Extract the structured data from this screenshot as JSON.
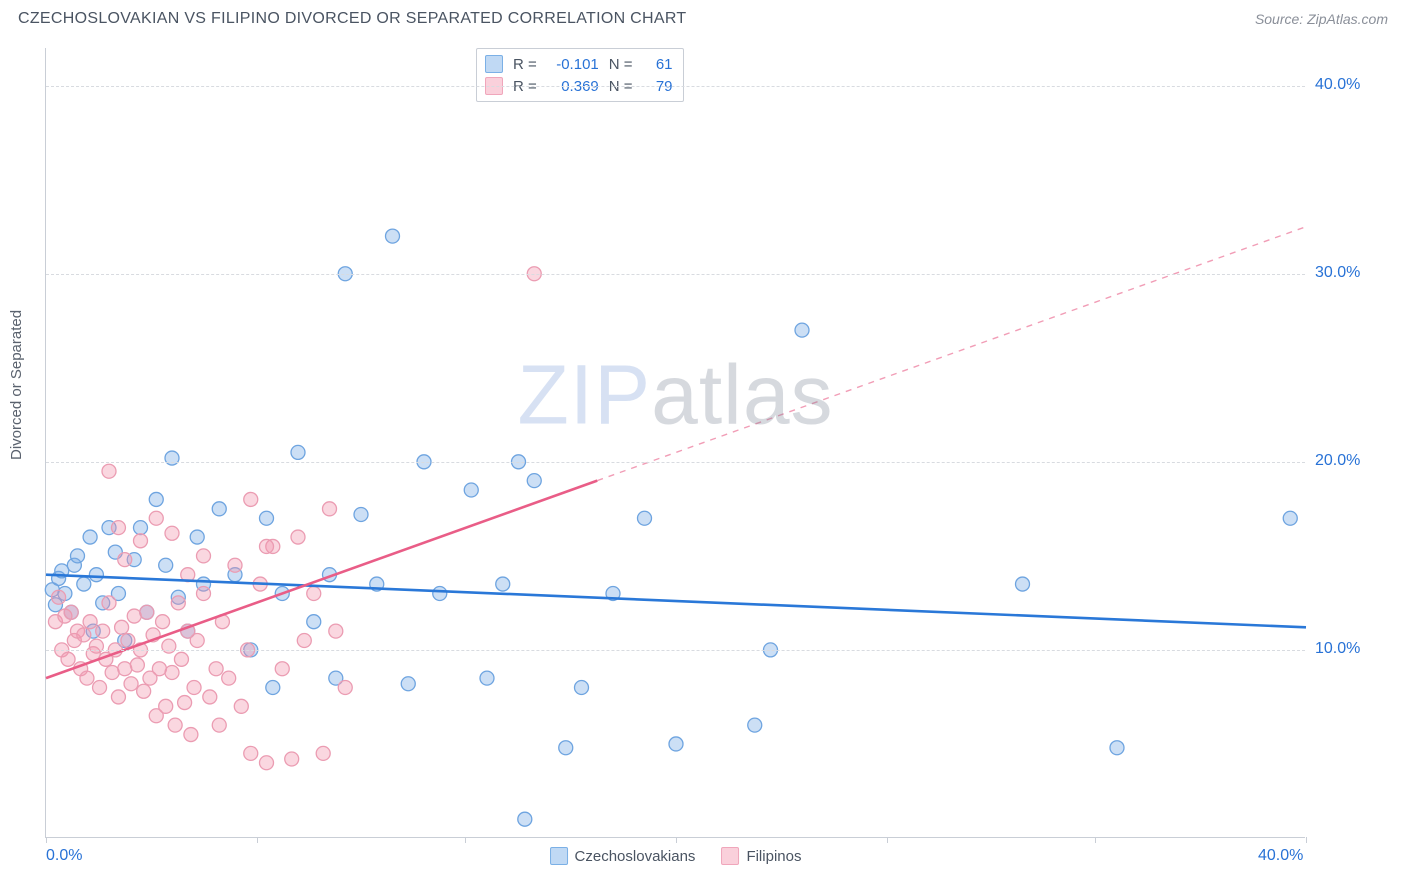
{
  "title": "CZECHOSLOVAKIAN VS FILIPINO DIVORCED OR SEPARATED CORRELATION CHART",
  "source_label": "Source: ",
  "source_value": "ZipAtlas.com",
  "ylabel": "Divorced or Separated",
  "watermark_zip": "ZIP",
  "watermark_atlas": "atlas",
  "chart": {
    "type": "scatter",
    "xlim": [
      0,
      40
    ],
    "ylim": [
      0,
      42
    ],
    "xtick_positions": [
      0,
      6.7,
      13.3,
      20,
      26.7,
      33.3,
      40
    ],
    "xtick_labels_shown": {
      "0": "0.0%",
      "40": "40.0%"
    },
    "ytick_values": [
      10,
      20,
      30,
      40
    ],
    "ytick_labels": [
      "10.0%",
      "20.0%",
      "30.0%",
      "40.0%"
    ],
    "grid_color": "#d8dbe0",
    "axis_color": "#c9ced6",
    "axis_label_color": "#2872d6",
    "background_color": "#ffffff",
    "marker_radius": 7,
    "marker_stroke_width": 1.3,
    "trend_line_width": 2.6,
    "series": [
      {
        "name": "Czechoslovakians",
        "fill_color": "rgba(120,170,230,0.38)",
        "stroke_color": "#6ea4e0",
        "swatch_border": "#7bb0e6",
        "swatch_fill": "rgba(140,185,235,0.55)",
        "trend_color": "#2a78d8",
        "trend": {
          "x1": 0,
          "y1": 14.0,
          "x2": 40,
          "y2": 11.2
        },
        "R": "-0.101",
        "N": "61",
        "points": [
          [
            0.2,
            13.2
          ],
          [
            0.3,
            12.4
          ],
          [
            0.4,
            13.8
          ],
          [
            0.5,
            14.2
          ],
          [
            0.6,
            13.0
          ],
          [
            0.8,
            12.0
          ],
          [
            0.9,
            14.5
          ],
          [
            1.0,
            15.0
          ],
          [
            1.2,
            13.5
          ],
          [
            1.4,
            16.0
          ],
          [
            1.6,
            14.0
          ],
          [
            1.5,
            11.0
          ],
          [
            1.8,
            12.5
          ],
          [
            2.0,
            16.5
          ],
          [
            2.2,
            15.2
          ],
          [
            2.3,
            13.0
          ],
          [
            2.5,
            10.5
          ],
          [
            2.8,
            14.8
          ],
          [
            3.0,
            16.5
          ],
          [
            3.2,
            12.0
          ],
          [
            3.5,
            18.0
          ],
          [
            3.8,
            14.5
          ],
          [
            4.0,
            20.2
          ],
          [
            4.2,
            12.8
          ],
          [
            4.5,
            11.0
          ],
          [
            4.8,
            16.0
          ],
          [
            5.0,
            13.5
          ],
          [
            5.5,
            17.5
          ],
          [
            6.0,
            14.0
          ],
          [
            6.5,
            10.0
          ],
          [
            7.0,
            17.0
          ],
          [
            7.2,
            8.0
          ],
          [
            7.5,
            13.0
          ],
          [
            8.0,
            20.5
          ],
          [
            8.5,
            11.5
          ],
          [
            9.0,
            14.0
          ],
          [
            9.2,
            8.5
          ],
          [
            9.5,
            30.0
          ],
          [
            10.0,
            17.2
          ],
          [
            10.5,
            13.5
          ],
          [
            11.0,
            32.0
          ],
          [
            11.5,
            8.2
          ],
          [
            12.0,
            20.0
          ],
          [
            12.5,
            13.0
          ],
          [
            13.5,
            18.5
          ],
          [
            14.0,
            8.5
          ],
          [
            14.5,
            13.5
          ],
          [
            15.0,
            20.0
          ],
          [
            15.2,
            1.0
          ],
          [
            15.5,
            19.0
          ],
          [
            16.5,
            4.8
          ],
          [
            17.0,
            8.0
          ],
          [
            18.0,
            13.0
          ],
          [
            19.0,
            17.0
          ],
          [
            20.0,
            5.0
          ],
          [
            22.5,
            6.0
          ],
          [
            24.0,
            27.0
          ],
          [
            31.0,
            13.5
          ],
          [
            34.0,
            4.8
          ],
          [
            39.5,
            17.0
          ],
          [
            23.0,
            10.0
          ]
        ]
      },
      {
        "name": "Filipinos",
        "fill_color": "rgba(242,150,173,0.38)",
        "stroke_color": "#eb9cb2",
        "swatch_border": "#f0a6bb",
        "swatch_fill": "rgba(245,170,190,0.55)",
        "trend_color": "#e95d87",
        "trend": {
          "x1": 0,
          "y1": 8.5,
          "x2": 17.5,
          "y2": 19.0
        },
        "trend_extrapolate": {
          "x1": 17.5,
          "y1": 19.0,
          "x2": 40,
          "y2": 32.5
        },
        "R": "0.369",
        "N": "79",
        "points": [
          [
            0.3,
            11.5
          ],
          [
            0.4,
            12.8
          ],
          [
            0.5,
            10.0
          ],
          [
            0.6,
            11.8
          ],
          [
            0.7,
            9.5
          ],
          [
            0.8,
            12.0
          ],
          [
            0.9,
            10.5
          ],
          [
            1.0,
            11.0
          ],
          [
            1.1,
            9.0
          ],
          [
            1.2,
            10.8
          ],
          [
            1.3,
            8.5
          ],
          [
            1.4,
            11.5
          ],
          [
            1.5,
            9.8
          ],
          [
            1.6,
            10.2
          ],
          [
            1.7,
            8.0
          ],
          [
            1.8,
            11.0
          ],
          [
            1.9,
            9.5
          ],
          [
            2.0,
            12.5
          ],
          [
            2.1,
            8.8
          ],
          [
            2.2,
            10.0
          ],
          [
            2.3,
            7.5
          ],
          [
            2.4,
            11.2
          ],
          [
            2.5,
            9.0
          ],
          [
            2.6,
            10.5
          ],
          [
            2.7,
            8.2
          ],
          [
            2.8,
            11.8
          ],
          [
            2.9,
            9.2
          ],
          [
            3.0,
            10.0
          ],
          [
            3.1,
            7.8
          ],
          [
            3.2,
            12.0
          ],
          [
            3.3,
            8.5
          ],
          [
            3.4,
            10.8
          ],
          [
            3.5,
            6.5
          ],
          [
            3.6,
            9.0
          ],
          [
            3.7,
            11.5
          ],
          [
            3.8,
            7.0
          ],
          [
            3.9,
            10.2
          ],
          [
            4.0,
            8.8
          ],
          [
            4.1,
            6.0
          ],
          [
            4.2,
            12.5
          ],
          [
            4.3,
            9.5
          ],
          [
            4.4,
            7.2
          ],
          [
            4.5,
            11.0
          ],
          [
            4.6,
            5.5
          ],
          [
            4.7,
            8.0
          ],
          [
            4.8,
            10.5
          ],
          [
            5.0,
            13.0
          ],
          [
            5.2,
            7.5
          ],
          [
            5.4,
            9.0
          ],
          [
            5.5,
            6.0
          ],
          [
            5.6,
            11.5
          ],
          [
            5.8,
            8.5
          ],
          [
            6.0,
            14.5
          ],
          [
            6.2,
            7.0
          ],
          [
            6.4,
            10.0
          ],
          [
            6.5,
            4.5
          ],
          [
            6.8,
            13.5
          ],
          [
            7.0,
            4.0
          ],
          [
            7.2,
            15.5
          ],
          [
            7.5,
            9.0
          ],
          [
            7.8,
            4.2
          ],
          [
            8.0,
            16.0
          ],
          [
            8.2,
            10.5
          ],
          [
            8.5,
            13.0
          ],
          [
            8.8,
            4.5
          ],
          [
            9.0,
            17.5
          ],
          [
            9.2,
            11.0
          ],
          [
            9.5,
            8.0
          ],
          [
            2.0,
            19.5
          ],
          [
            2.3,
            16.5
          ],
          [
            2.5,
            14.8
          ],
          [
            3.0,
            15.8
          ],
          [
            3.5,
            17.0
          ],
          [
            4.0,
            16.2
          ],
          [
            4.5,
            14.0
          ],
          [
            5.0,
            15.0
          ],
          [
            6.5,
            18.0
          ],
          [
            7.0,
            15.5
          ],
          [
            15.5,
            30.0
          ]
        ]
      }
    ]
  },
  "stats_labels": {
    "R": "R =",
    "N": "N ="
  }
}
